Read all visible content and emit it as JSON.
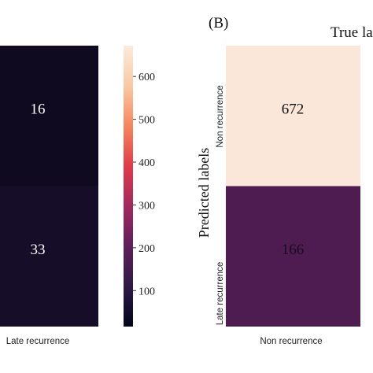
{
  "panel_b_label": "(B)",
  "chart_data": {
    "type": "heatmap",
    "panels": [
      {
        "id": "A",
        "partial": true,
        "x_visible_column": "Late recurrence",
        "cells": [
          {
            "row": 0,
            "value": 16,
            "color": "#0f0a1f"
          },
          {
            "row": 1,
            "value": 33,
            "color": "#160e28"
          }
        ]
      },
      {
        "id": "B",
        "label": "(B)",
        "title_visible": "True la",
        "ylabel": "Predicted labels",
        "y_ticks": [
          "Non recurrence",
          "Late recurrence"
        ],
        "x_visible_column": "Non recurrence",
        "cells": [
          {
            "row": 0,
            "value": 672,
            "color": "#fbe7da"
          },
          {
            "row": 1,
            "value": 166,
            "color": "#4f1c52"
          }
        ]
      }
    ],
    "colorbar": {
      "ticks": [
        100,
        200,
        300,
        400,
        500,
        600
      ],
      "range": [
        16,
        672
      ],
      "colors": [
        "#03051a",
        "#2e1a47",
        "#5e1f5a",
        "#a12a5e",
        "#e03b4a",
        "#f4875e",
        "#f9c9a5",
        "#faebdd"
      ]
    }
  }
}
